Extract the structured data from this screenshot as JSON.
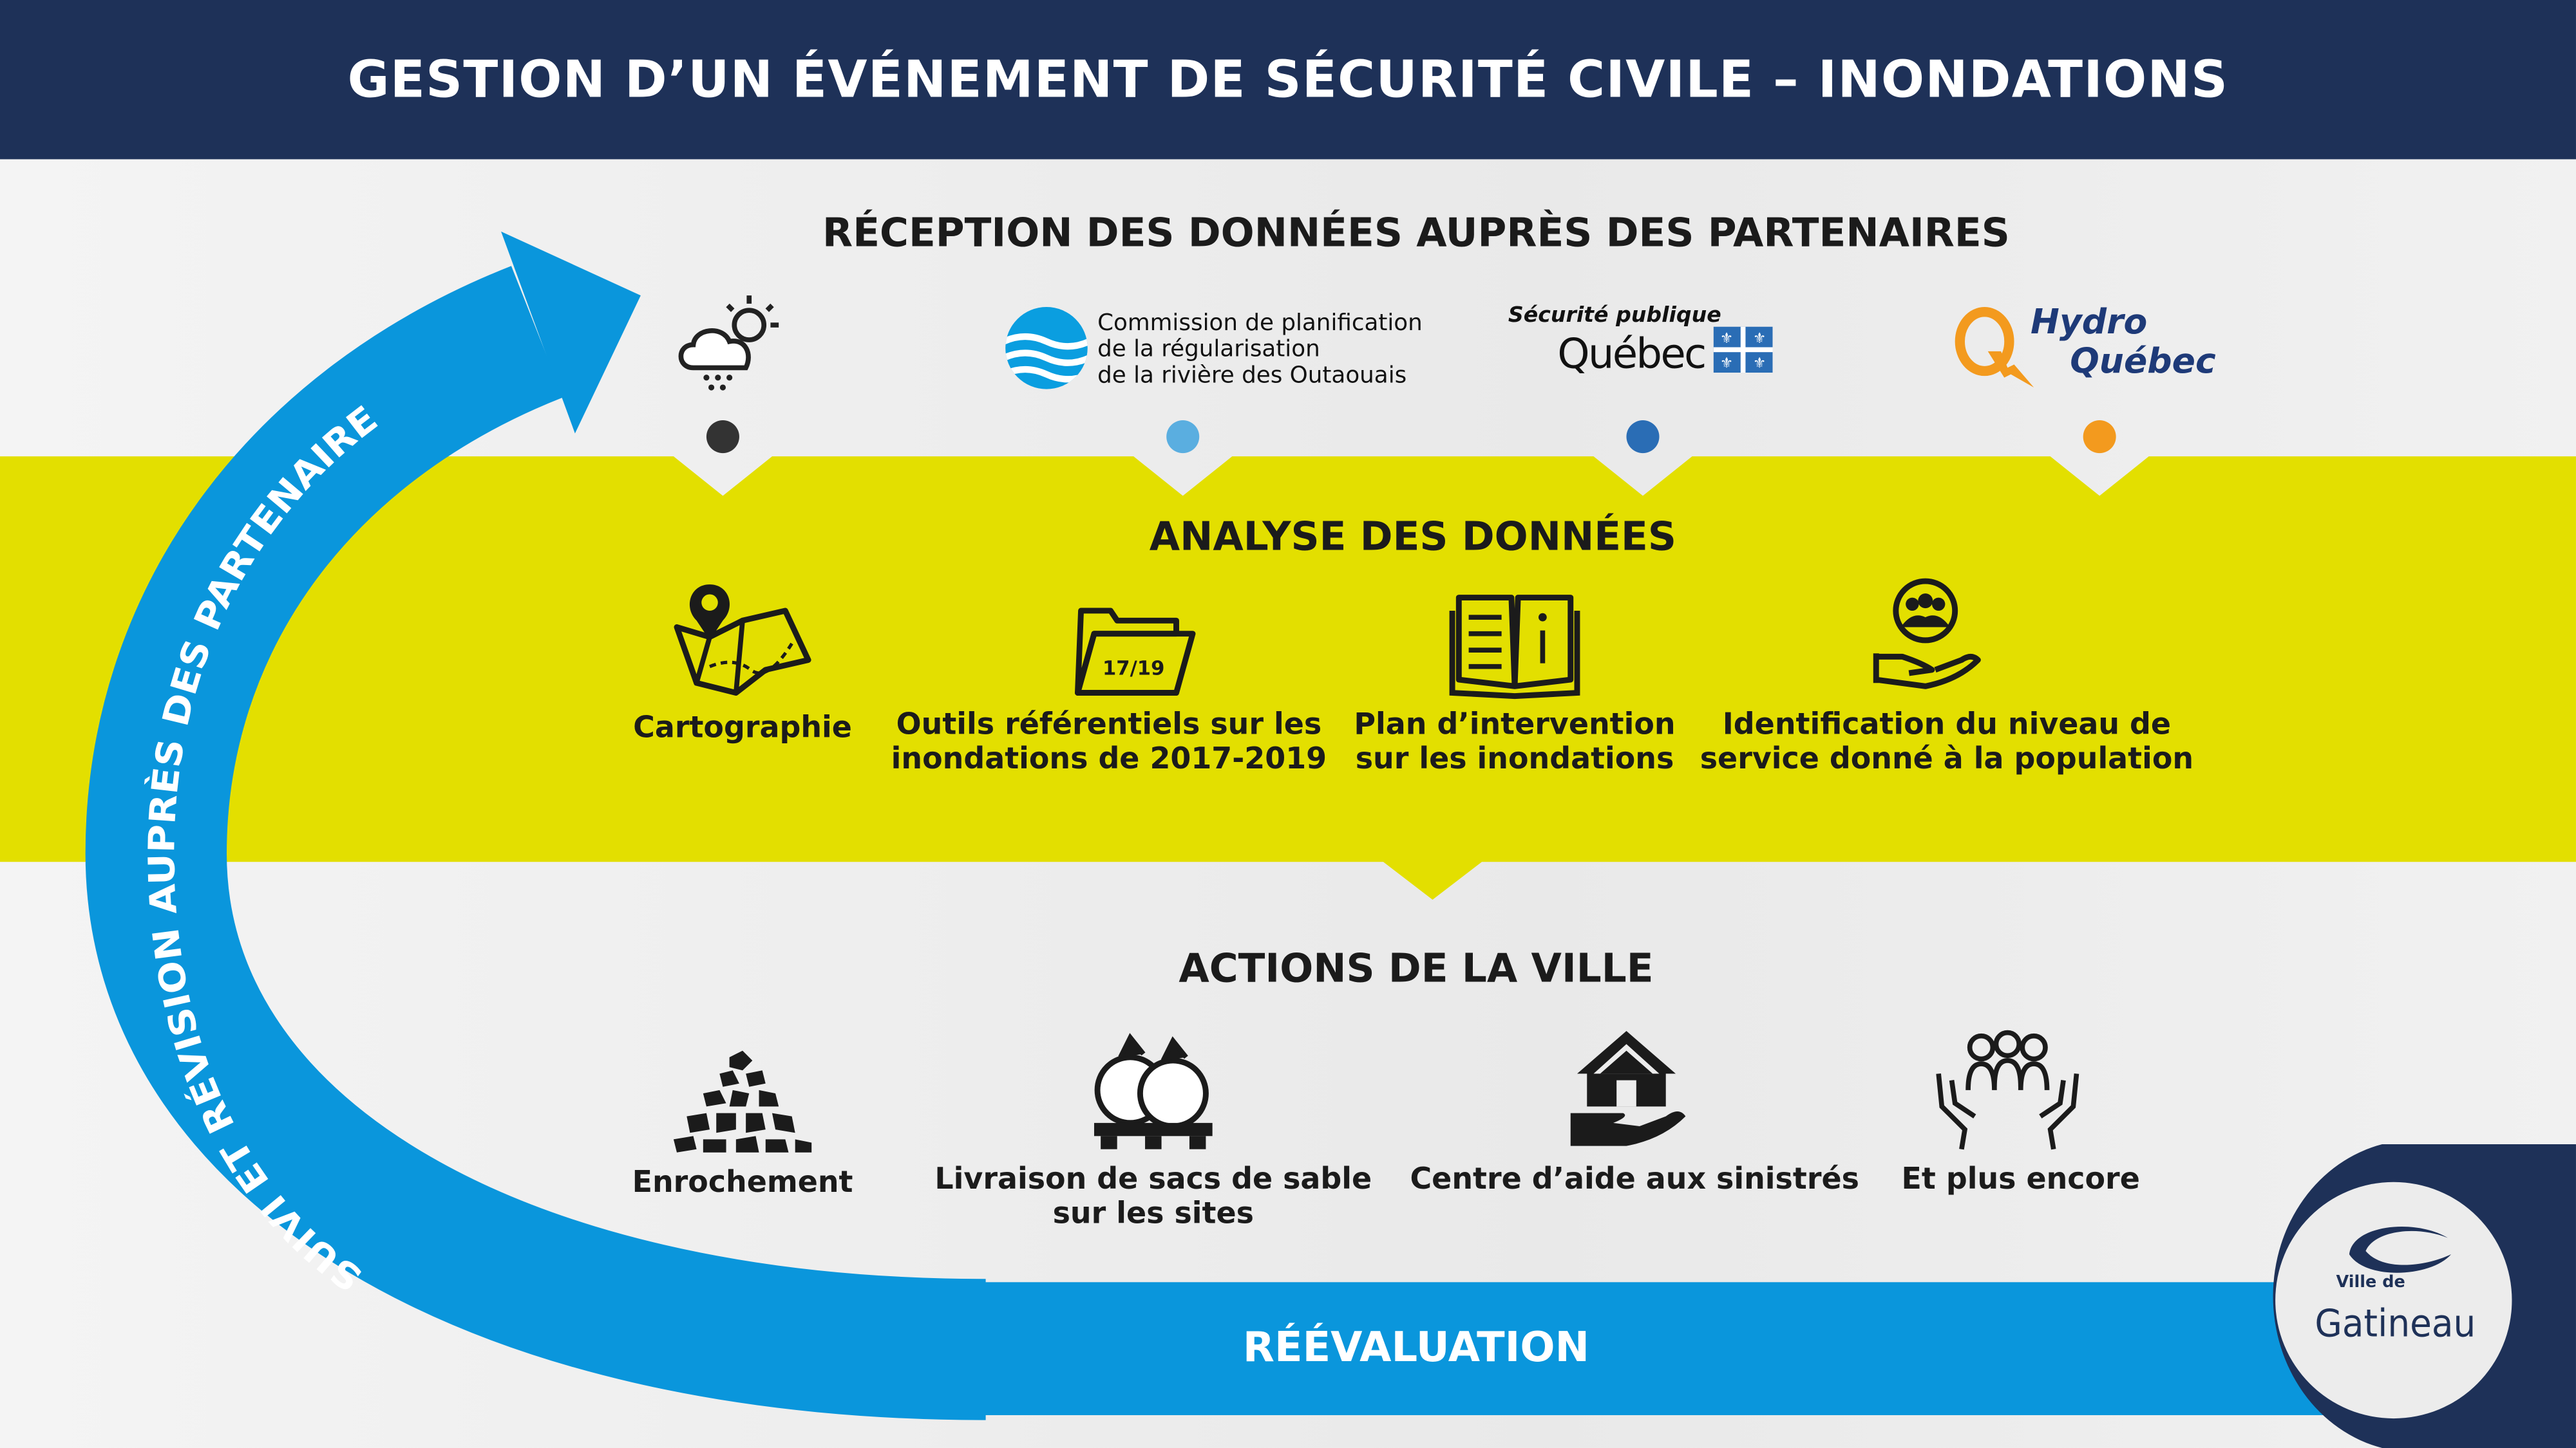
{
  "header": {
    "title": "GESTION D’UN ÉVÉNEMENT DE SÉCURITÉ CIVILE – INONDATIONS"
  },
  "colors": {
    "navy": "#1e3158",
    "blue": "#0a96dc",
    "yellow": "#e3df00",
    "gray": "#ececec"
  },
  "reception": {
    "title": "RÉCEPTION DES DONNÉES AUPRÈS DES PARTENAIRES",
    "partners": [
      {
        "name": "Météo",
        "icon": "weather-cloud-sun-rain-icon",
        "dot_color": "#333333"
      },
      {
        "name": "Commission de planification de la régularisation de la rivière des Outaouais",
        "lines": [
          "Commission de planification",
          "de la régularisation",
          "de la rivière des Outaouais"
        ],
        "icon": "river-waves-logo",
        "dot_color": "#5aaee0"
      },
      {
        "name": "Sécurité publique Québec",
        "line1": "Sécurité publique",
        "line2": "Québec",
        "icon": "quebec-flag-logo",
        "dot_color": "#2a6db5"
      },
      {
        "name": "Hydro Québec",
        "line1": "Hydro",
        "line2": "Québec",
        "icon": "hydro-quebec-logo",
        "dot_color": "#f39a1e"
      }
    ]
  },
  "analyse": {
    "title": "ANALYSE DES DONNÉES",
    "items": [
      {
        "icon": "map-pin-icon",
        "lines": [
          "Cartographie"
        ]
      },
      {
        "icon": "folder-icon",
        "folder_text": "17/19",
        "lines": [
          "Outils référentiels sur les",
          "inondations de 2017-2019"
        ]
      },
      {
        "icon": "book-icon",
        "lines": [
          "Plan d’intervention",
          "sur les inondations"
        ]
      },
      {
        "icon": "hand-people-icon",
        "lines": [
          "Identification du niveau de",
          "service donné à la population"
        ]
      }
    ]
  },
  "actions": {
    "title": "ACTIONS DE LA VILLE",
    "items": [
      {
        "icon": "rocks-icon",
        "lines": [
          "Enrochement"
        ]
      },
      {
        "icon": "sandbags-icon",
        "lines": [
          "Livraison de sacs de sable",
          "sur les sites"
        ]
      },
      {
        "icon": "house-hand-icon",
        "lines": [
          "Centre d’aide aux sinistrés"
        ]
      },
      {
        "icon": "people-hands-icon",
        "lines": [
          "Et plus encore"
        ]
      }
    ]
  },
  "cycle": {
    "arc_label": "SUIVI ET RÉVISION AUPRÈS DES PARTENAIRES",
    "bottom_label": "RÉÉVALUATION"
  },
  "logo": {
    "line1": "Ville de",
    "line2": "Gatineau"
  }
}
